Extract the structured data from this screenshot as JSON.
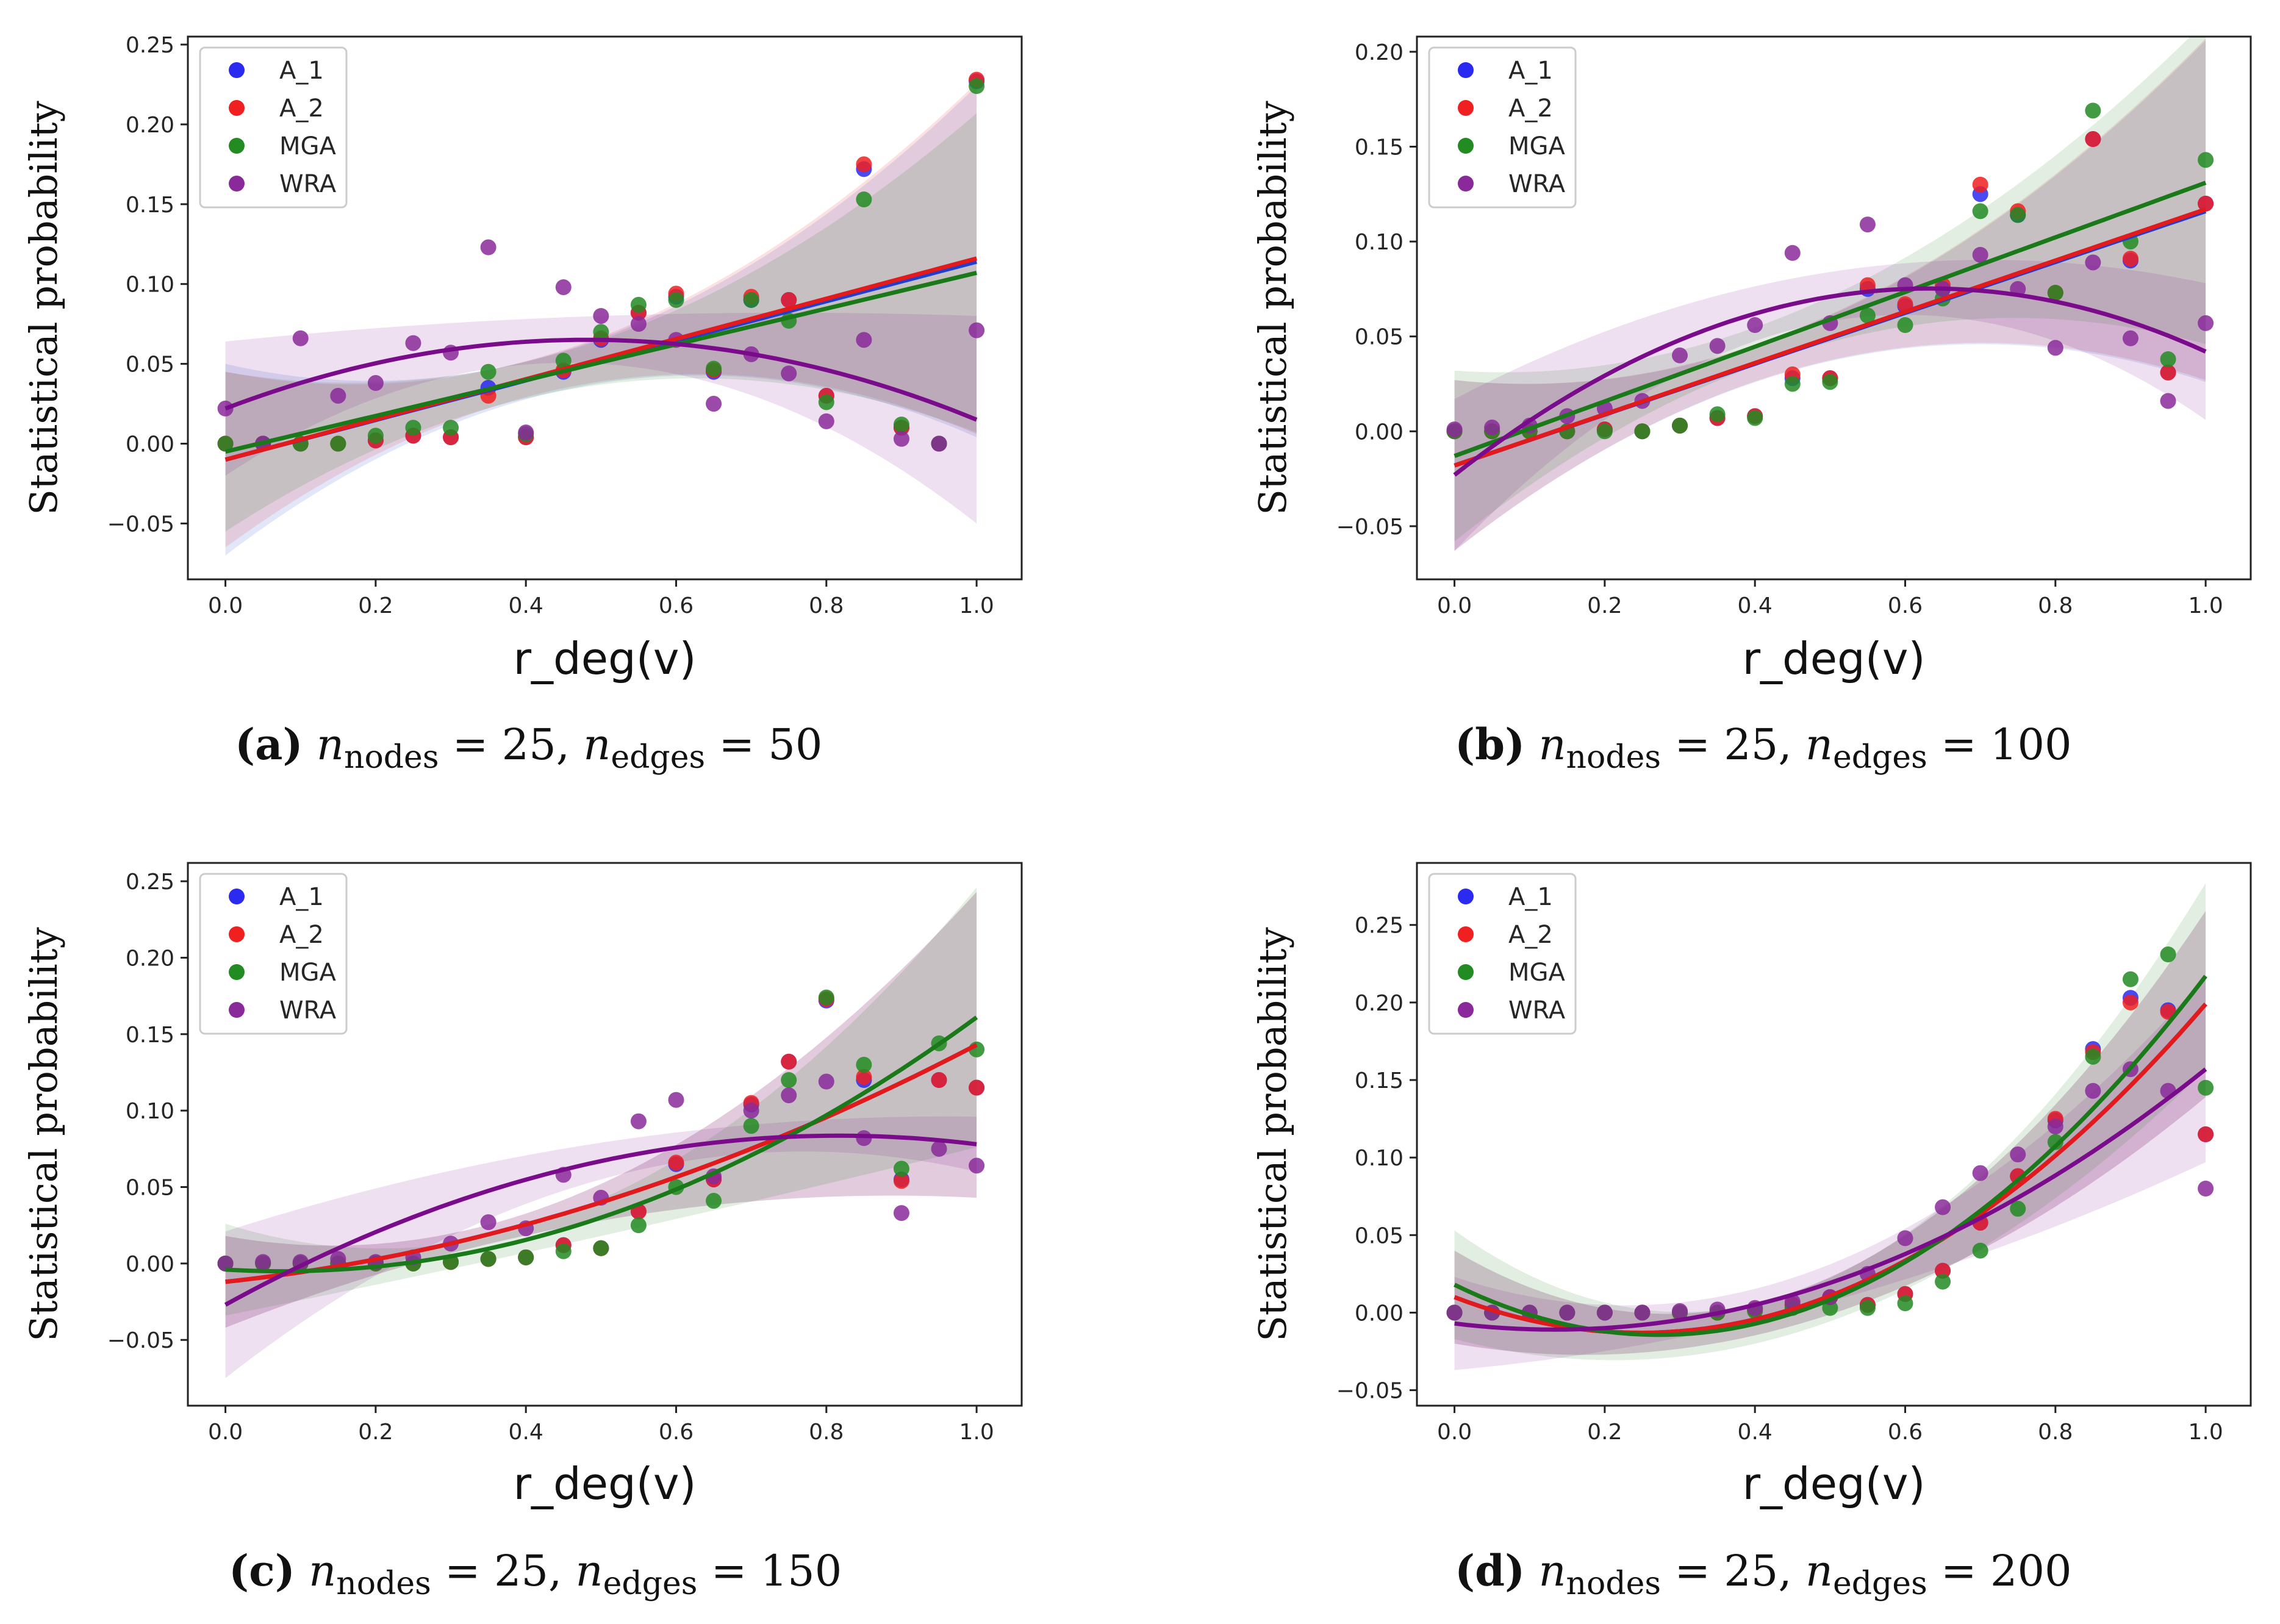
{
  "figure": {
    "ylabel": "Statistical probability",
    "xlabel": "r_deg(v)",
    "series_names": [
      "A_1",
      "A_2",
      "MGA",
      "WRA"
    ],
    "colors": {
      "A_1": "#2a2af0",
      "A_2": "#f02020",
      "MGA": "#228b22",
      "WRA": "#8a2a9a",
      "fit_A_1": "#1f3fd0",
      "fit_A_2": "#e31a1c",
      "fit_MGA": "#1a7a1a",
      "fit_WRA": "#7a0c8c"
    }
  },
  "chart_data": [
    {
      "type": "scatter",
      "panel": "a",
      "caption": {
        "letter": "(a)",
        "n": "n",
        "sub_nodes": "nodes",
        "eq_nodes": "= 25,",
        "sub_edges": "edges",
        "eq_edges": "= 50"
      },
      "xlabel": "r_deg(v)",
      "ylabel": "Statistical probability",
      "xlim": [
        -0.05,
        1.06
      ],
      "ylim": [
        -0.085,
        0.255
      ],
      "xticks": [
        0.0,
        0.2,
        0.4,
        0.6,
        0.8,
        1.0
      ],
      "xtick_labels": [
        "0.0",
        "0.2",
        "0.4",
        "0.6",
        "0.8",
        "1.0"
      ],
      "yticks": [
        -0.05,
        0.0,
        0.05,
        0.1,
        0.15,
        0.2,
        0.25
      ],
      "ytick_labels": [
        "−0.05",
        "0.00",
        "0.05",
        "0.10",
        "0.15",
        "0.20",
        "0.25"
      ],
      "legend": [
        "A_1",
        "A_2",
        "MGA",
        "WRA"
      ],
      "legend_position": "top-left",
      "x": [
        0.0,
        0.05,
        0.1,
        0.15,
        0.2,
        0.25,
        0.3,
        0.35,
        0.4,
        0.45,
        0.5,
        0.55,
        0.6,
        0.65,
        0.7,
        0.75,
        0.8,
        0.85,
        0.9,
        0.95,
        1.0
      ],
      "series": [
        {
          "name": "A_1",
          "values": [
            0.0,
            0.0,
            0.0,
            0.0,
            0.002,
            0.005,
            0.004,
            0.035,
            0.004,
            0.045,
            0.065,
            0.082,
            0.092,
            0.045,
            0.09,
            0.09,
            0.03,
            0.172,
            0.01,
            0.0,
            0.227
          ],
          "fit": [
            -0.01,
            0.114
          ],
          "band": [
            0.06,
            0.014,
            0.11
          ]
        },
        {
          "name": "A_2",
          "values": [
            0.0,
            0.0,
            0.0,
            0.0,
            0.002,
            0.005,
            0.004,
            0.03,
            0.004,
            0.046,
            0.066,
            0.082,
            0.094,
            0.046,
            0.092,
            0.09,
            0.03,
            0.175,
            0.01,
            0.0,
            0.228
          ],
          "fit": [
            -0.01,
            0.116
          ],
          "band": [
            0.055,
            0.014,
            0.11
          ]
        },
        {
          "name": "MGA",
          "values": [
            0.0,
            0.0,
            0.0,
            0.0,
            0.005,
            0.01,
            0.01,
            0.045,
            0.006,
            0.052,
            0.07,
            0.087,
            0.09,
            0.047,
            0.09,
            0.077,
            0.026,
            0.153,
            0.012,
            0.0,
            0.224
          ],
          "fit": [
            -0.005,
            0.107
          ],
          "band": [
            0.05,
            0.014,
            0.1
          ]
        },
        {
          "name": "WRA",
          "values": [
            0.022,
            0.0,
            0.066,
            0.03,
            0.038,
            0.063,
            0.057,
            0.123,
            0.007,
            0.098,
            0.08,
            0.075,
            0.065,
            0.025,
            0.056,
            0.044,
            0.014,
            0.065,
            0.003,
            0.0,
            0.071
          ],
          "fit_points": [
            [
              0.0,
              0.022
            ],
            [
              0.5,
              0.065
            ],
            [
              1.0,
              0.015
            ]
          ],
          "band": [
            0.042,
            0.015,
            0.065
          ]
        }
      ]
    },
    {
      "type": "scatter",
      "panel": "b",
      "caption": {
        "letter": "(b)",
        "n": "n",
        "sub_nodes": "nodes",
        "eq_nodes": "= 25,",
        "sub_edges": "edges",
        "eq_edges": "= 100"
      },
      "xlabel": "r_deg(v)",
      "ylabel": "Statistical probability",
      "xlim": [
        -0.05,
        1.06
      ],
      "ylim": [
        -0.078,
        0.208
      ],
      "xticks": [
        0.0,
        0.2,
        0.4,
        0.6,
        0.8,
        1.0
      ],
      "xtick_labels": [
        "0.0",
        "0.2",
        "0.4",
        "0.6",
        "0.8",
        "1.0"
      ],
      "yticks": [
        -0.05,
        0.0,
        0.05,
        0.1,
        0.15,
        0.2
      ],
      "ytick_labels": [
        "−0.05",
        "0.00",
        "0.05",
        "0.10",
        "0.15",
        "0.20"
      ],
      "legend": [
        "A_1",
        "A_2",
        "MGA",
        "WRA"
      ],
      "legend_position": "top-left",
      "x": [
        0.0,
        0.05,
        0.1,
        0.15,
        0.2,
        0.25,
        0.3,
        0.35,
        0.4,
        0.45,
        0.5,
        0.55,
        0.6,
        0.65,
        0.7,
        0.75,
        0.8,
        0.85,
        0.9,
        0.95,
        1.0
      ],
      "series": [
        {
          "name": "A_1",
          "values": [
            0.0,
            0.0,
            0.0,
            0.0,
            0.001,
            0.0,
            0.003,
            0.007,
            0.008,
            0.028,
            0.028,
            0.075,
            0.066,
            0.075,
            0.125,
            0.114,
            0.073,
            0.154,
            0.09,
            0.031,
            0.12
          ],
          "fit": [
            -0.018,
            0.116
          ],
          "band": [
            0.045,
            0.012,
            0.09
          ]
        },
        {
          "name": "A_2",
          "values": [
            0.0,
            0.0,
            0.0,
            0.0,
            0.001,
            0.0,
            0.003,
            0.007,
            0.008,
            0.03,
            0.028,
            0.077,
            0.067,
            0.077,
            0.13,
            0.116,
            0.073,
            0.154,
            0.091,
            0.031,
            0.12
          ],
          "fit": [
            -0.018,
            0.117
          ],
          "band": [
            0.045,
            0.012,
            0.09
          ]
        },
        {
          "name": "MGA",
          "values": [
            0.0,
            0.0,
            0.0,
            0.0,
            0.0,
            0.0,
            0.003,
            0.009,
            0.007,
            0.025,
            0.026,
            0.061,
            0.056,
            0.07,
            0.116,
            0.114,
            0.073,
            0.169,
            0.1,
            0.038,
            0.143
          ],
          "fit": [
            -0.013,
            0.131
          ],
          "band": [
            0.045,
            0.012,
            0.085
          ]
        },
        {
          "name": "WRA",
          "values": [
            0.001,
            0.002,
            0.003,
            0.008,
            0.012,
            0.016,
            0.04,
            0.045,
            0.056,
            0.094,
            0.057,
            0.109,
            0.077,
            0.075,
            0.093,
            0.075,
            0.044,
            0.089,
            0.049,
            0.016,
            0.057
          ],
          "fit_points": [
            [
              0.0,
              -0.023
            ],
            [
              0.6,
              0.075
            ],
            [
              1.0,
              0.042
            ]
          ],
          "band": [
            0.04,
            0.013,
            0.036
          ]
        }
      ]
    },
    {
      "type": "scatter",
      "panel": "c",
      "caption": {
        "letter": "(c)",
        "n": "n",
        "sub_nodes": "nodes",
        "eq_nodes": "= 25,",
        "sub_edges": "edges",
        "eq_edges": "= 150"
      },
      "xlabel": "r_deg(v)",
      "ylabel": "Statistical probability",
      "xlim": [
        -0.05,
        1.06
      ],
      "ylim": [
        -0.093,
        0.262
      ],
      "xticks": [
        0.0,
        0.2,
        0.4,
        0.6,
        0.8,
        1.0
      ],
      "xtick_labels": [
        "0.0",
        "0.2",
        "0.4",
        "0.6",
        "0.8",
        "1.0"
      ],
      "yticks": [
        -0.05,
        0.0,
        0.05,
        0.1,
        0.15,
        0.2,
        0.25
      ],
      "ytick_labels": [
        "−0.05",
        "0.00",
        "0.05",
        "0.10",
        "0.15",
        "0.20",
        "0.25"
      ],
      "legend": [
        "A_1",
        "A_2",
        "MGA",
        "WRA"
      ],
      "legend_position": "top-left",
      "x": [
        0.0,
        0.05,
        0.1,
        0.15,
        0.2,
        0.25,
        0.3,
        0.35,
        0.4,
        0.45,
        0.5,
        0.55,
        0.6,
        0.65,
        0.7,
        0.75,
        0.8,
        0.85,
        0.9,
        0.95,
        1.0
      ],
      "series": [
        {
          "name": "A_1",
          "values": [
            0.0,
            0.0,
            0.0,
            0.0,
            0.0,
            0.0,
            0.001,
            0.003,
            0.004,
            0.012,
            0.01,
            0.034,
            0.065,
            0.055,
            0.104,
            0.132,
            0.172,
            0.12,
            0.055,
            0.12,
            0.115
          ],
          "fit_points": [
            [
              0.0,
              -0.012
            ],
            [
              0.5,
              0.04
            ],
            [
              1.0,
              0.143
            ]
          ],
          "band": [
            0.03,
            0.012,
            0.1
          ]
        },
        {
          "name": "A_2",
          "values": [
            0.0,
            0.0,
            0.0,
            0.0,
            0.0,
            0.0,
            0.001,
            0.003,
            0.004,
            0.012,
            0.01,
            0.034,
            0.066,
            0.055,
            0.105,
            0.132,
            0.173,
            0.122,
            0.054,
            0.12,
            0.115
          ],
          "fit_points": [
            [
              0.0,
              -0.012
            ],
            [
              0.5,
              0.04
            ],
            [
              1.0,
              0.143
            ]
          ],
          "band": [
            0.03,
            0.012,
            0.1
          ]
        },
        {
          "name": "MGA",
          "values": [
            0.0,
            0.0,
            0.0,
            0.0,
            0.0,
            0.0,
            0.001,
            0.003,
            0.004,
            0.008,
            0.01,
            0.025,
            0.05,
            0.041,
            0.09,
            0.12,
            0.174,
            0.13,
            0.062,
            0.144,
            0.14
          ],
          "fit_points": [
            [
              0.0,
              -0.004
            ],
            [
              0.5,
              0.03
            ],
            [
              1.0,
              0.161
            ]
          ],
          "band": [
            0.03,
            0.012,
            0.085
          ]
        },
        {
          "name": "WRA",
          "values": [
            0.0,
            0.001,
            0.001,
            0.003,
            0.001,
            0.004,
            0.013,
            0.027,
            0.023,
            0.058,
            0.043,
            0.093,
            0.107,
            0.057,
            0.1,
            0.11,
            0.119,
            0.082,
            0.033,
            0.075,
            0.064
          ],
          "fit_points": [
            [
              0.0,
              -0.027
            ],
            [
              0.5,
              0.067
            ],
            [
              1.0,
              0.078
            ]
          ],
          "band": [
            0.048,
            0.012,
            0.018
          ]
        }
      ]
    },
    {
      "type": "scatter",
      "panel": "d",
      "caption": {
        "letter": "(d)",
        "n": "n",
        "sub_nodes": "nodes",
        "eq_nodes": "= 25,",
        "sub_edges": "edges",
        "eq_edges": "= 200"
      },
      "xlabel": "r_deg(v)",
      "ylabel": "Statistical probability",
      "xlim": [
        -0.05,
        1.06
      ],
      "ylim": [
        -0.06,
        0.29
      ],
      "xticks": [
        0.0,
        0.2,
        0.4,
        0.6,
        0.8,
        1.0
      ],
      "xtick_labels": [
        "0.0",
        "0.2",
        "0.4",
        "0.6",
        "0.8",
        "1.0"
      ],
      "yticks": [
        -0.05,
        0.0,
        0.05,
        0.1,
        0.15,
        0.2,
        0.25
      ],
      "ytick_labels": [
        "−0.05",
        "0.00",
        "0.05",
        "0.10",
        "0.15",
        "0.20",
        "0.25"
      ],
      "legend": [
        "A_1",
        "A_2",
        "MGA",
        "WRA"
      ],
      "legend_position": "top-left",
      "x": [
        0.0,
        0.05,
        0.1,
        0.15,
        0.2,
        0.25,
        0.3,
        0.35,
        0.4,
        0.45,
        0.5,
        0.55,
        0.6,
        0.65,
        0.7,
        0.75,
        0.8,
        0.85,
        0.9,
        0.95,
        1.0
      ],
      "series": [
        {
          "name": "A_1",
          "values": [
            0.0,
            0.0,
            0.0,
            0.0,
            0.0,
            0.0,
            0.0,
            0.0,
            0.002,
            0.005,
            0.01,
            0.005,
            0.012,
            0.027,
            0.058,
            0.088,
            0.124,
            0.17,
            0.203,
            0.195,
            0.115
          ],
          "fit_points": [
            [
              0.0,
              0.01
            ],
            [
              0.3,
              -0.012
            ],
            [
              1.0,
              0.199
            ]
          ],
          "band": [
            0.03,
            0.012,
            0.06
          ]
        },
        {
          "name": "A_2",
          "values": [
            0.0,
            0.0,
            0.0,
            0.0,
            0.0,
            0.0,
            0.0,
            0.0,
            0.002,
            0.005,
            0.01,
            0.005,
            0.012,
            0.027,
            0.058,
            0.088,
            0.125,
            0.168,
            0.2,
            0.194,
            0.115
          ],
          "fit_points": [
            [
              0.0,
              0.01
            ],
            [
              0.3,
              -0.012
            ],
            [
              1.0,
              0.199
            ]
          ],
          "band": [
            0.03,
            0.012,
            0.06
          ]
        },
        {
          "name": "MGA",
          "values": [
            0.0,
            0.0,
            0.0,
            0.0,
            0.0,
            0.0,
            0.0,
            0.0,
            0.001,
            0.003,
            0.003,
            0.003,
            0.006,
            0.02,
            0.04,
            0.067,
            0.11,
            0.165,
            0.215,
            0.231,
            0.145
          ],
          "fit_points": [
            [
              0.0,
              0.018
            ],
            [
              0.3,
              -0.014
            ],
            [
              1.0,
              0.217
            ]
          ],
          "band": [
            0.035,
            0.014,
            0.06
          ]
        },
        {
          "name": "WRA",
          "values": [
            0.0,
            0.0,
            0.0,
            0.0,
            0.0,
            0.0,
            0.001,
            0.002,
            0.003,
            0.007,
            0.01,
            0.025,
            0.048,
            0.068,
            0.09,
            0.102,
            0.12,
            0.143,
            0.157,
            0.143,
            0.08
          ],
          "fit_points": [
            [
              0.0,
              -0.007
            ],
            [
              0.4,
              0.005
            ],
            [
              1.0,
              0.157
            ]
          ],
          "band": [
            0.03,
            0.012,
            0.06
          ]
        }
      ]
    }
  ]
}
